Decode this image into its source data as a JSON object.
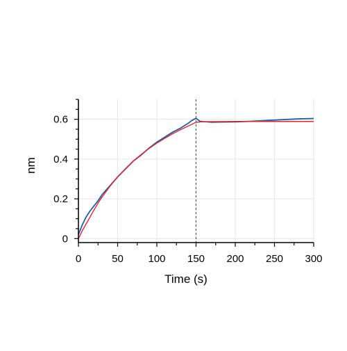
{
  "chart_data": {
    "type": "line",
    "xlabel": "Time (s)",
    "ylabel": "nm",
    "xlim": [
      0,
      300
    ],
    "ylim": [
      -0.02,
      0.7
    ],
    "x_ticks": [
      0,
      50,
      100,
      150,
      200,
      250,
      300
    ],
    "y_ticks": [
      0,
      0.2,
      0.4,
      0.6
    ],
    "x_tick_labels": [
      "0",
      "50",
      "100",
      "150",
      "200",
      "250",
      "300"
    ],
    "y_tick_labels": [
      "0",
      "0.2",
      "0.4",
      "0.6"
    ],
    "grid": true,
    "vertical_markers": [
      0,
      150
    ],
    "series": [
      {
        "color": "#1f5fa6",
        "x": [
          0,
          5,
          10,
          15,
          20,
          25,
          30,
          40,
          50,
          60,
          70,
          80,
          90,
          100,
          110,
          120,
          130,
          140,
          145,
          150,
          155,
          160,
          170,
          180,
          200,
          220,
          240,
          260,
          280,
          300
        ],
        "y": [
          0.02,
          0.07,
          0.11,
          0.14,
          0.165,
          0.19,
          0.22,
          0.265,
          0.31,
          0.35,
          0.39,
          0.42,
          0.455,
          0.485,
          0.51,
          0.535,
          0.555,
          0.58,
          0.595,
          0.605,
          0.59,
          0.588,
          0.585,
          0.586,
          0.587,
          0.59,
          0.594,
          0.598,
          0.602,
          0.604
        ]
      },
      {
        "color": "#e8202a",
        "x": [
          0,
          5,
          10,
          15,
          20,
          25,
          30,
          40,
          50,
          60,
          70,
          80,
          90,
          100,
          110,
          120,
          130,
          140,
          150,
          160,
          200,
          250,
          300
        ],
        "y": [
          0,
          0.04,
          0.075,
          0.11,
          0.145,
          0.178,
          0.208,
          0.262,
          0.31,
          0.352,
          0.39,
          0.423,
          0.453,
          0.48,
          0.504,
          0.527,
          0.547,
          0.566,
          0.585,
          0.588,
          0.589,
          0.589,
          0.589
        ]
      }
    ]
  }
}
